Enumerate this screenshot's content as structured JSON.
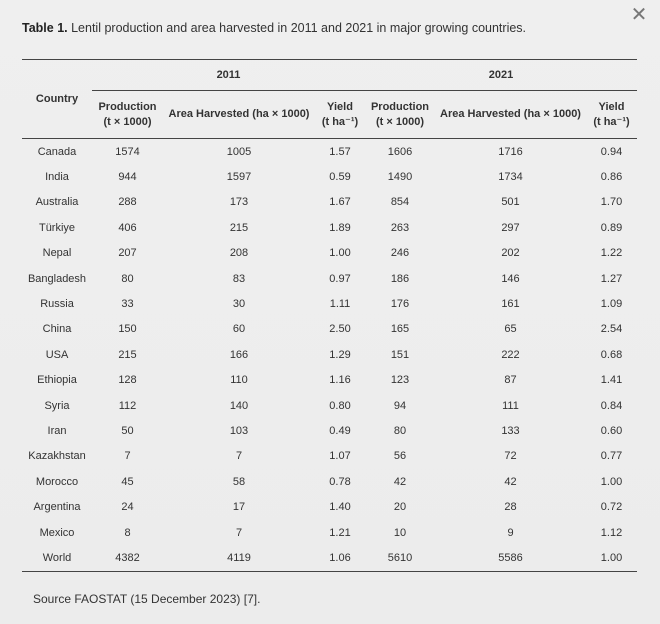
{
  "dialog": {
    "close_symbol": "✕"
  },
  "caption": {
    "label": "Table 1.",
    "text": " Lentil production and area harvested in 2011 and 2021 in major growing countries."
  },
  "table": {
    "country_header": "Country",
    "years": [
      "2011",
      "2021"
    ],
    "subheaders": [
      "Production\n(t × 1000)",
      "Area Harvested (ha × 1000)",
      "Yield\n(t ha⁻¹)",
      "Production\n(t × 1000)",
      "Area Harvested (ha × 1000)",
      "Yield\n(t ha⁻¹)"
    ],
    "rows": [
      [
        "Canada",
        "1574",
        "1005",
        "1.57",
        "1606",
        "1716",
        "0.94"
      ],
      [
        "India",
        "944",
        "1597",
        "0.59",
        "1490",
        "1734",
        "0.86"
      ],
      [
        "Australia",
        "288",
        "173",
        "1.67",
        "854",
        "501",
        "1.70"
      ],
      [
        "Türkiye",
        "406",
        "215",
        "1.89",
        "263",
        "297",
        "0.89"
      ],
      [
        "Nepal",
        "207",
        "208",
        "1.00",
        "246",
        "202",
        "1.22"
      ],
      [
        "Bangladesh",
        "80",
        "83",
        "0.97",
        "186",
        "146",
        "1.27"
      ],
      [
        "Russia",
        "33",
        "30",
        "1.11",
        "176",
        "161",
        "1.09"
      ],
      [
        "China",
        "150",
        "60",
        "2.50",
        "165",
        "65",
        "2.54"
      ],
      [
        "USA",
        "215",
        "166",
        "1.29",
        "151",
        "222",
        "0.68"
      ],
      [
        "Ethiopia",
        "128",
        "110",
        "1.16",
        "123",
        "87",
        "1.41"
      ],
      [
        "Syria",
        "112",
        "140",
        "0.80",
        "94",
        "111",
        "0.84"
      ],
      [
        "Iran",
        "50",
        "103",
        "0.49",
        "80",
        "133",
        "0.60"
      ],
      [
        "Kazakhstan",
        "7",
        "7",
        "1.07",
        "56",
        "72",
        "0.77"
      ],
      [
        "Morocco",
        "45",
        "58",
        "0.78",
        "42",
        "42",
        "1.00"
      ],
      [
        "Argentina",
        "24",
        "17",
        "1.40",
        "20",
        "28",
        "0.72"
      ],
      [
        "Mexico",
        "8",
        "7",
        "1.21",
        "10",
        "9",
        "1.12"
      ],
      [
        "World",
        "4382",
        "4119",
        "1.06",
        "5610",
        "5586",
        "1.00"
      ]
    ]
  },
  "footnote": {
    "text": "Source FAOSTAT (15 December 2023) [7]."
  }
}
